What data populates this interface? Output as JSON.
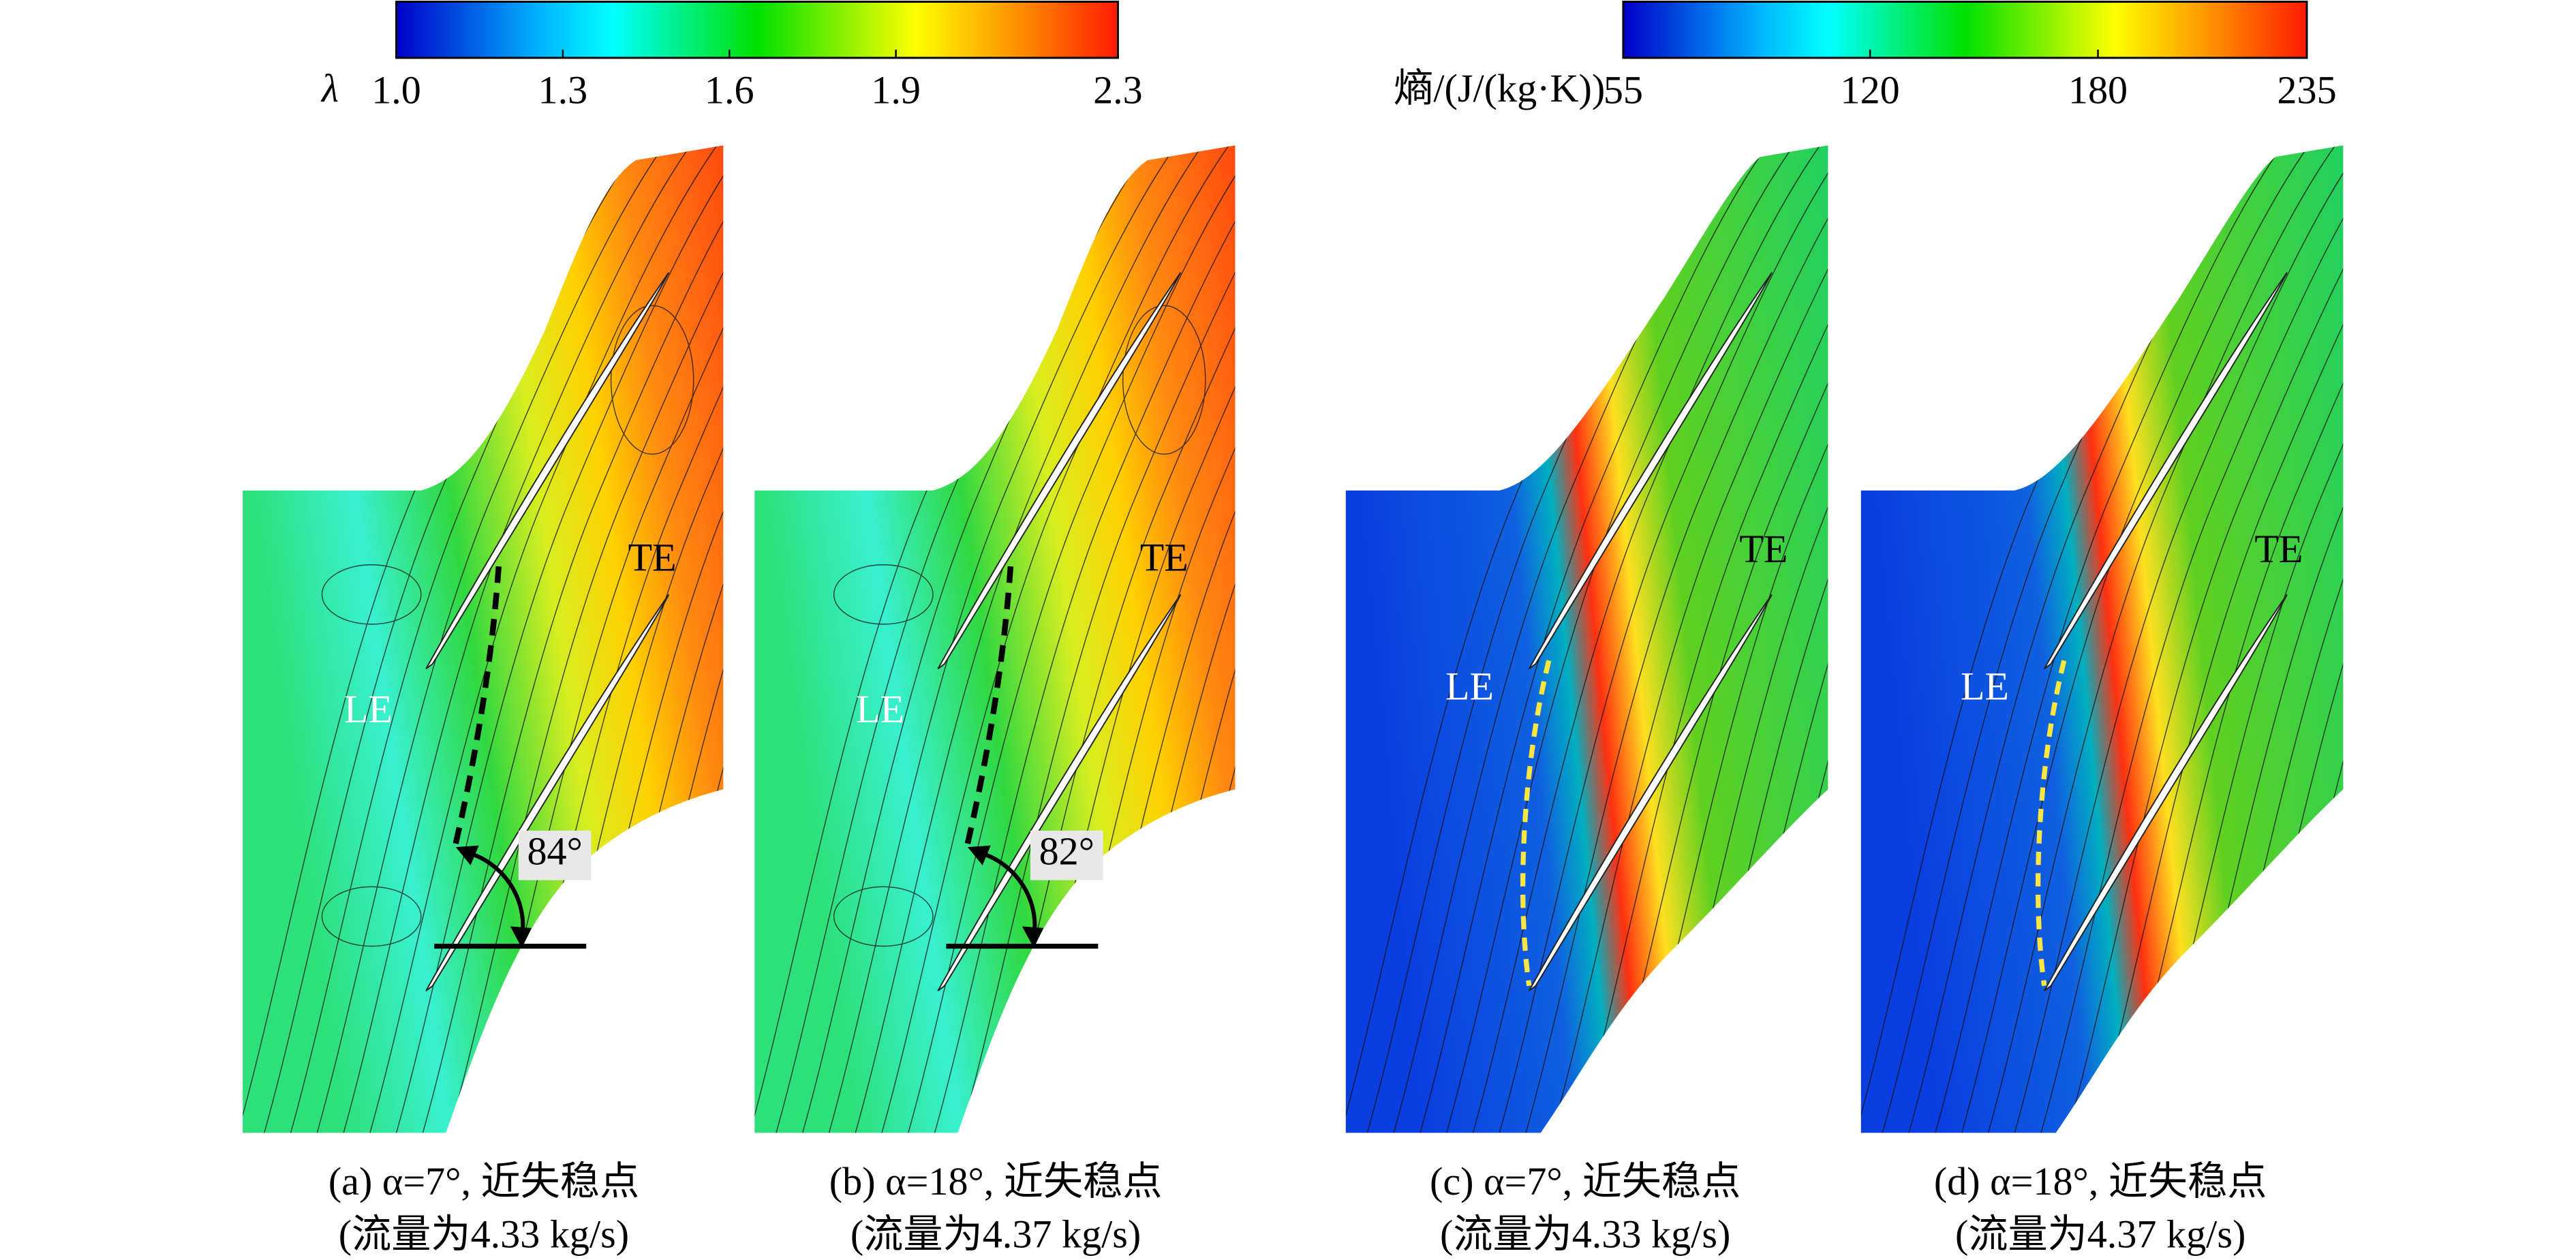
{
  "colorbars": [
    {
      "label": "λ",
      "range": [
        1.0,
        2.3
      ],
      "ticks": [
        {
          "value": 1.0,
          "label": "1.0"
        },
        {
          "value": 1.3,
          "label": "1.3"
        },
        {
          "value": 1.6,
          "label": "1.6"
        },
        {
          "value": 1.9,
          "label": "1.9"
        },
        {
          "value": 2.3,
          "label": "2.3"
        }
      ]
    },
    {
      "label": "熵/(J/(kg·K))",
      "range": [
        55,
        235
      ],
      "ticks": [
        55,
        120,
        180,
        235
      ]
    }
  ],
  "panels": [
    {
      "le": "LE",
      "te": "TE",
      "angle": "84°",
      "caption": [
        "(a) α=7°, 近失稳点",
        "(流量为4.33 kg/s)"
      ]
    },
    {
      "le": "LE",
      "te": "TE",
      "angle": "82°",
      "caption": [
        "(b) α=18°, 近失稳点",
        "(流量为4.37 kg/s)"
      ]
    },
    {
      "le": "LE",
      "te": "TE",
      "caption": [
        "(c) α=7°, 近失稳点",
        "(流量为4.33 kg/s)"
      ]
    },
    {
      "le": "LE",
      "te": "TE",
      "caption": [
        "(d) α=18°, 近失稳点",
        "(流量为4.37 kg/s)"
      ]
    }
  ]
}
